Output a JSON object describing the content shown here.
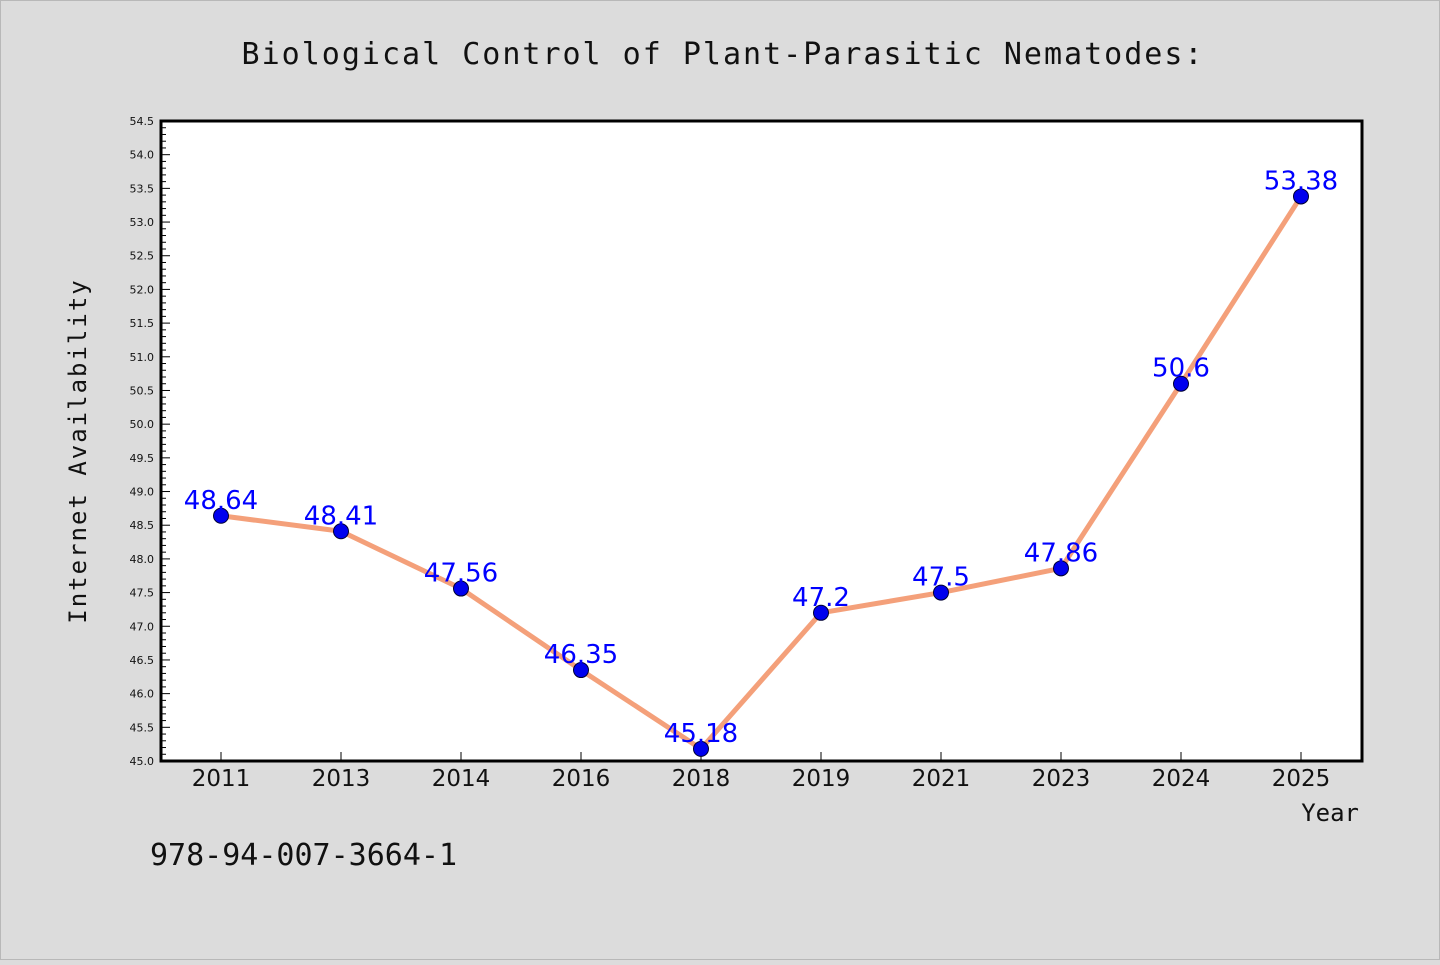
{
  "chart_data": {
    "type": "line",
    "title": "Biological Control of Plant-Parasitic Nematodes:",
    "xlabel": "Year",
    "ylabel": "Internet Availability",
    "categories": [
      "2011",
      "2013",
      "2014",
      "2016",
      "2018",
      "2019",
      "2021",
      "2023",
      "2024",
      "2025"
    ],
    "series": [
      {
        "values": [
          48.64,
          48.41,
          47.56,
          46.35,
          45.18,
          47.2,
          47.5,
          47.86,
          50.6,
          53.38
        ],
        "labels": [
          "48.64",
          "48.41",
          "47.56",
          "46.35",
          "45.18",
          "47.2",
          "47.5",
          "47.86",
          "50.6",
          "53.38"
        ],
        "line_color": "#f4a07a",
        "marker_color": "#0000ee",
        "label_color": "#0000ff"
      }
    ],
    "ylim": [
      45.0,
      54.5
    ],
    "yticks": [
      "45.0",
      "45.5",
      "46.0",
      "46.5",
      "47.0",
      "47.5",
      "48.0",
      "48.5",
      "49.0",
      "49.5",
      "50.0",
      "50.5",
      "51.0",
      "51.5",
      "52.0",
      "52.5",
      "53.0",
      "53.5",
      "54.0",
      "54.5"
    ],
    "grid": false,
    "legend": "none"
  },
  "footer_text": "978-94-007-3664-1",
  "colors": {
    "background": "#dcdcdc",
    "plot_background": "#ffffff",
    "axes": "#000000"
  }
}
